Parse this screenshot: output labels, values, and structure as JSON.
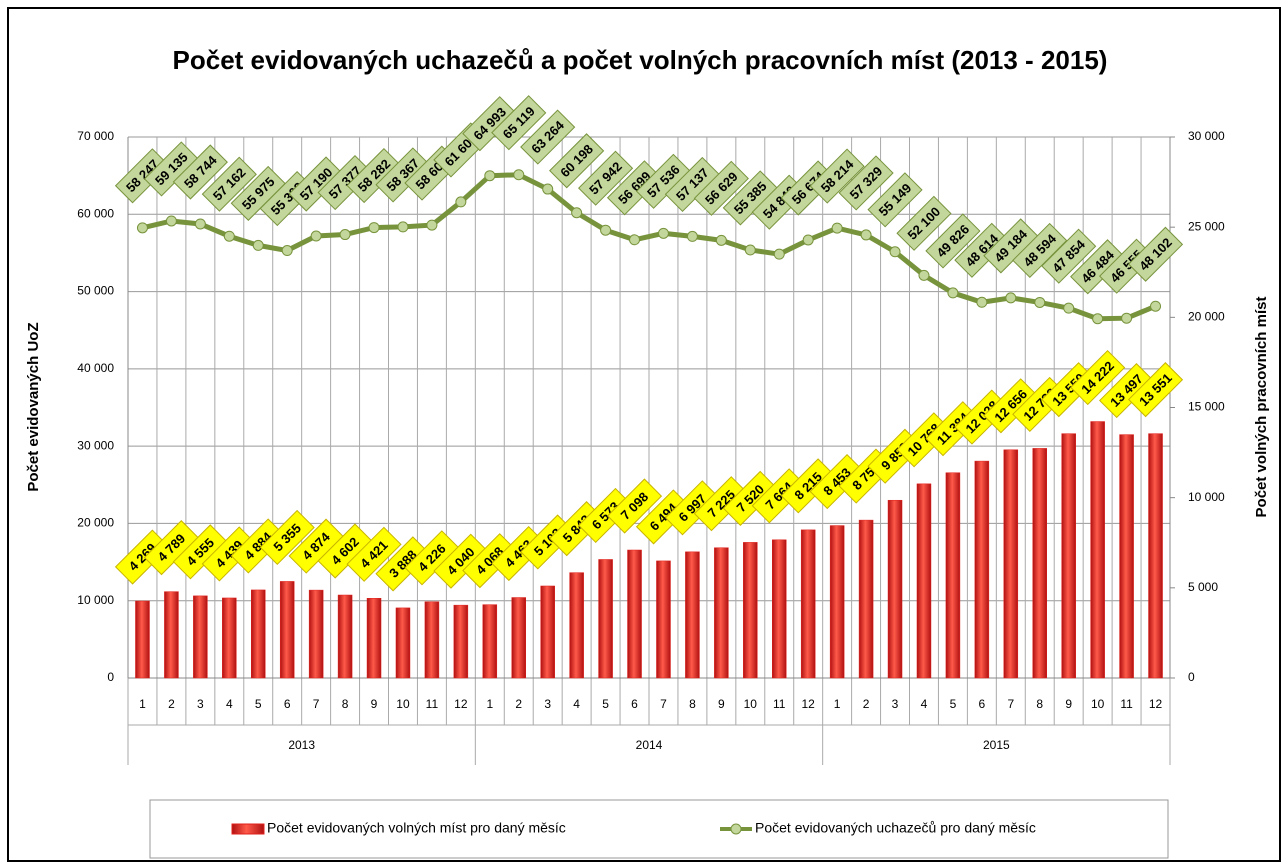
{
  "chart_data": {
    "type": "bar_line",
    "title": "Počet evidovaných uchazečů a počet volných pracovních míst (2013 - 2015)",
    "y_label": "Počet evidovaných UoZ",
    "y2_label": "Počet volných pracovních míst",
    "categories": [
      "1",
      "2",
      "3",
      "4",
      "5",
      "6",
      "7",
      "8",
      "9",
      "10",
      "11",
      "12",
      "1",
      "2",
      "3",
      "4",
      "5",
      "6",
      "7",
      "8",
      "9",
      "10",
      "11",
      "12",
      "1",
      "2",
      "3",
      "4",
      "5",
      "6",
      "7",
      "8",
      "9",
      "10",
      "11",
      "12"
    ],
    "category_groups": [
      "2013",
      "2014",
      "2015"
    ],
    "ylim": [
      0,
      70000
    ],
    "yticks": [
      0,
      {
        "value": 10000,
        "label": "10 000"
      },
      {
        "value": 20000,
        "label": "20 000"
      },
      {
        "value": 30000,
        "label": "30 000"
      },
      {
        "value": 40000,
        "label": "40 000"
      },
      {
        "value": 50000,
        "label": "50 000"
      },
      {
        "value": 60000,
        "label": "60 000"
      },
      {
        "value": 70000,
        "label": "70 000"
      }
    ],
    "y2lim": [
      0,
      30000
    ],
    "y2ticks": [
      0,
      {
        "value": 5000,
        "label": "5 000"
      },
      {
        "value": 10000,
        "label": "10 000"
      },
      {
        "value": 15000,
        "label": "15 000"
      },
      {
        "value": 20000,
        "label": "20 000"
      },
      {
        "value": 25000,
        "label": "25 000"
      },
      {
        "value": 30000,
        "label": "30 000"
      }
    ],
    "grid": true,
    "legend": "bottom",
    "series": [
      {
        "name": "Počet evidovaných volných míst pro daný měsíc",
        "type": "bar",
        "axis": "y2",
        "color": "#e0201b",
        "values": [
          4269,
          4789,
          4555,
          4439,
          4884,
          5355,
          4874,
          4602,
          4421,
          3888,
          4226,
          4040,
          4068,
          4463,
          5103,
          5843,
          6573,
          7098,
          6494,
          6997,
          7225,
          7520,
          7664,
          8215,
          8453,
          8756,
          9858,
          10768,
          11384,
          12028,
          12656,
          12732,
          13550,
          14222,
          13497,
          13551
        ],
        "value_labels": [
          "4 269",
          "4 789",
          "4 555",
          "4 439",
          "4 884",
          "5 355",
          "4 874",
          "4 602",
          "4 421",
          "3 888",
          "4 226",
          "4 040",
          "4 068",
          "4 463",
          "5 103",
          "5 843",
          "6 573",
          "7 098",
          "6 494",
          "6 997",
          "7 225",
          "7 520",
          "7 664",
          "8 215",
          "8 453",
          "8 756",
          "9 858",
          "10 768",
          "11 384",
          "12 028",
          "12 656",
          "12 732",
          "13 550",
          "14 222",
          "13 497",
          "13 551"
        ]
      },
      {
        "name": "Počet evidovaných uchazečů pro daný měsíc",
        "type": "line",
        "axis": "y",
        "color": "#77933c",
        "values": [
          58247,
          59135,
          58744,
          57162,
          55975,
          55309,
          57190,
          57377,
          58282,
          58367,
          58600,
          61600,
          64993,
          65119,
          63264,
          60198,
          57942,
          56699,
          57536,
          57137,
          56629,
          55385,
          54840,
          56674,
          58214,
          57329,
          55149,
          52100,
          49826,
          48614,
          49184,
          48594,
          47854,
          46484,
          46555,
          48102
        ],
        "value_labels": [
          "58 247",
          "59 135",
          "58 744",
          "57 162",
          "55 975",
          "55 309",
          "57 190",
          "57 377",
          "58 282",
          "58 367",
          "58 600",
          "61 600",
          "64 993",
          "65 119",
          "63 264",
          "60 198",
          "57 942",
          "56 699",
          "57 536",
          "57 137",
          "56 629",
          "55 385",
          "54 840",
          "56 674",
          "58 214",
          "57 329",
          "55 149",
          "52 100",
          "49 826",
          "48 614",
          "49 184",
          "48 594",
          "47 854",
          "46 484",
          "46 555",
          "48 102"
        ]
      }
    ]
  }
}
